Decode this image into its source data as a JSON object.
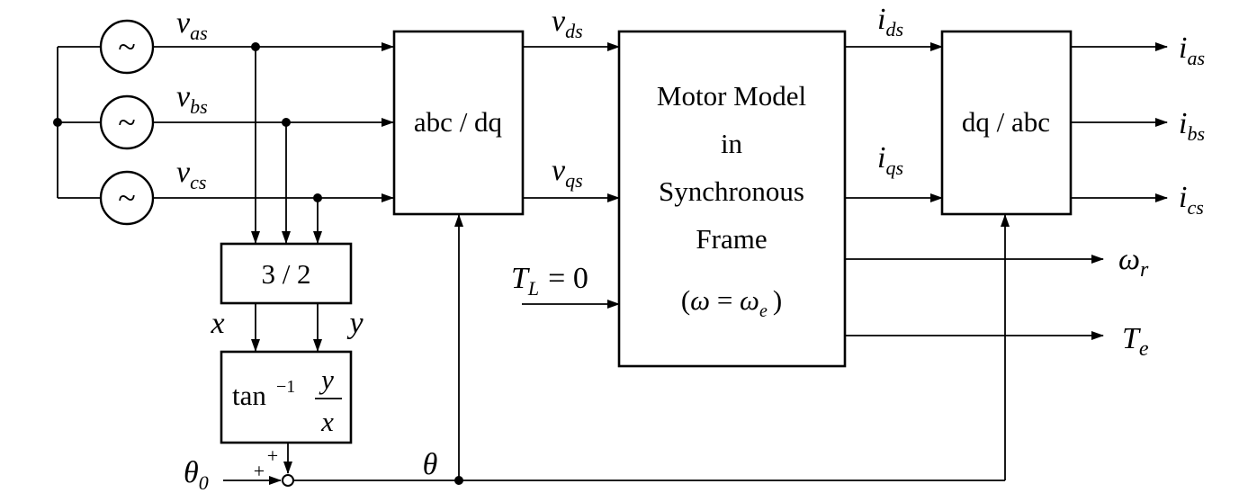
{
  "blocks": {
    "abc_dq": "abc / dq",
    "motor_model": [
      "Motor Model",
      "in",
      "Synchronous",
      "Frame"
    ],
    "motor_omega": {
      "open": "(",
      "omega": "ω",
      "eq": " = ",
      "omega_e": "ω",
      "sub_e": "e",
      "close": ")"
    },
    "dq_abc": "dq / abc",
    "three_two": "3 / 2",
    "arctan": {
      "fn": "tan",
      "exp": "−1",
      "num": "y",
      "den": "x"
    }
  },
  "signals": {
    "vas": {
      "main": "v",
      "sub": "as"
    },
    "vbs": {
      "main": "v",
      "sub": "bs"
    },
    "vcs": {
      "main": "v",
      "sub": "cs"
    },
    "vds": {
      "main": "v",
      "sub": "ds"
    },
    "vqs": {
      "main": "v",
      "sub": "qs"
    },
    "ids": {
      "main": "i",
      "sub": "ds"
    },
    "iqs": {
      "main": "i",
      "sub": "qs"
    },
    "ias": {
      "main": "i",
      "sub": "as"
    },
    "ibs": {
      "main": "i",
      "sub": "bs"
    },
    "ics": {
      "main": "i",
      "sub": "cs"
    },
    "TL": {
      "main": "T",
      "sub": "L",
      "eq": "= 0"
    },
    "wr": {
      "main": "ω",
      "sub": "r"
    },
    "Te": {
      "main": "T",
      "sub": "e"
    },
    "x": "x",
    "y": "y",
    "theta": "θ",
    "theta0": {
      "main": "θ",
      "sub": "0"
    },
    "plus_top": "+",
    "plus_left": "+"
  },
  "source_glyph": "~"
}
